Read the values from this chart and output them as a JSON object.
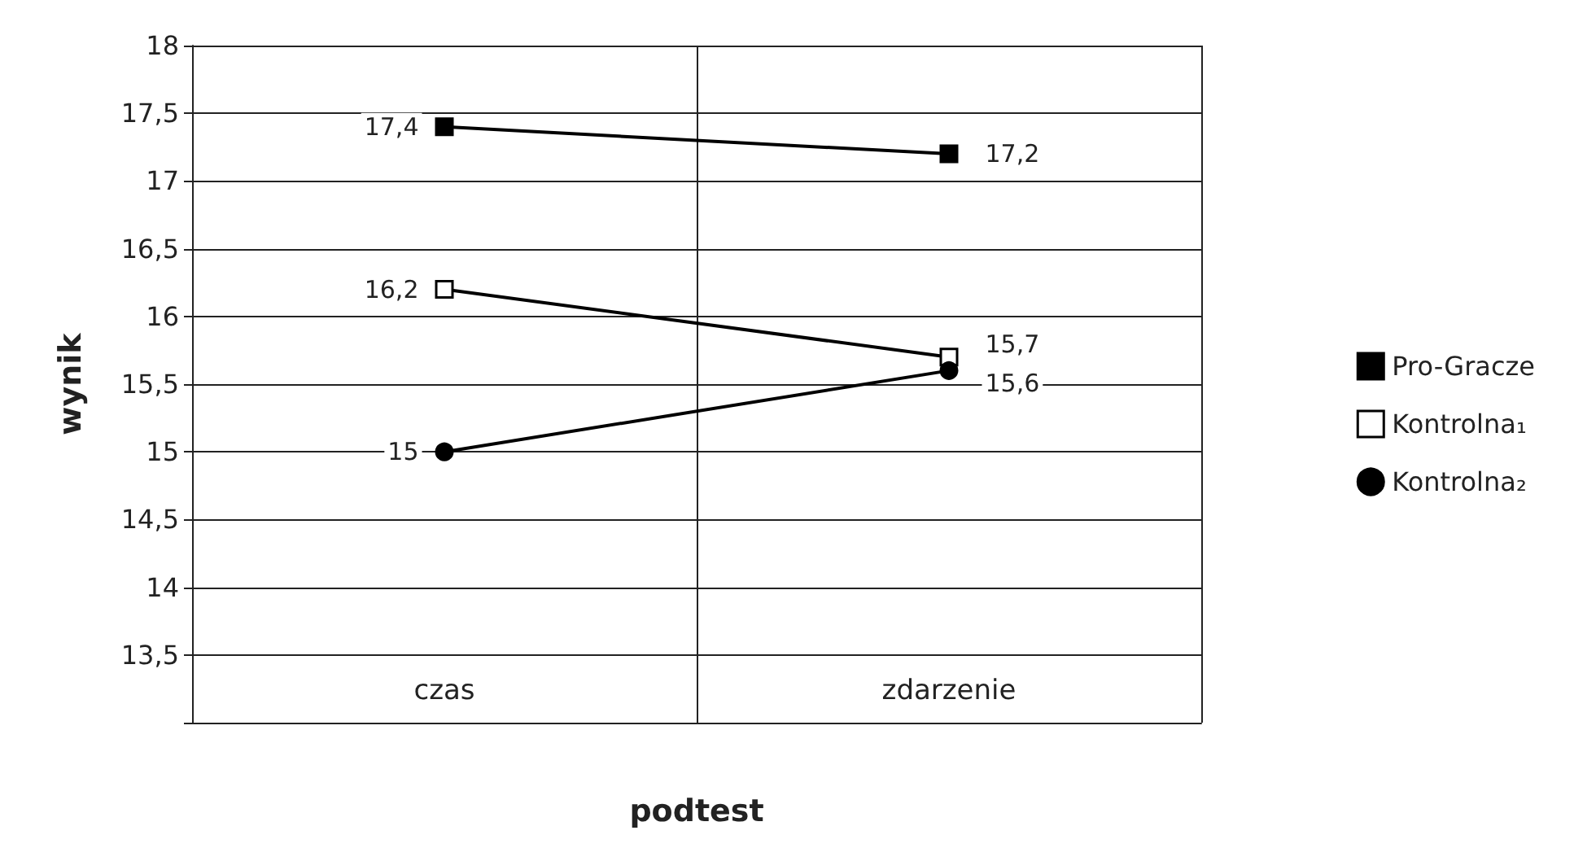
{
  "chart_data": {
    "type": "line",
    "xlabel": "podtest",
    "ylabel": "wynik",
    "categories": [
      "czas",
      "zdarzenie"
    ],
    "series": [
      {
        "name": "Pro-Gracze",
        "color": "#000000",
        "marker": "square",
        "values": [
          17.4,
          17.2
        ],
        "value_labels": [
          "17,4",
          "17,2"
        ]
      },
      {
        "name": "Kontrolna₁",
        "color": "#ffffff",
        "marker": "square",
        "values": [
          16.2,
          15.7
        ],
        "value_labels": [
          "16,2",
          "15,7"
        ]
      },
      {
        "name": "Kontrolna₂",
        "color": "#000000",
        "marker": "circle",
        "values": [
          15,
          15.6
        ],
        "value_labels": [
          "15",
          "15,6"
        ]
      }
    ],
    "ylim": [
      13,
      18
    ],
    "yticks": [
      {
        "value": 13,
        "label": null
      },
      "13,5",
      14,
      "14,5",
      15,
      "15,5",
      16,
      "16,5",
      17,
      "17,5",
      18
    ],
    "grid": true,
    "legend": "right",
    "line_style": "solid"
  }
}
